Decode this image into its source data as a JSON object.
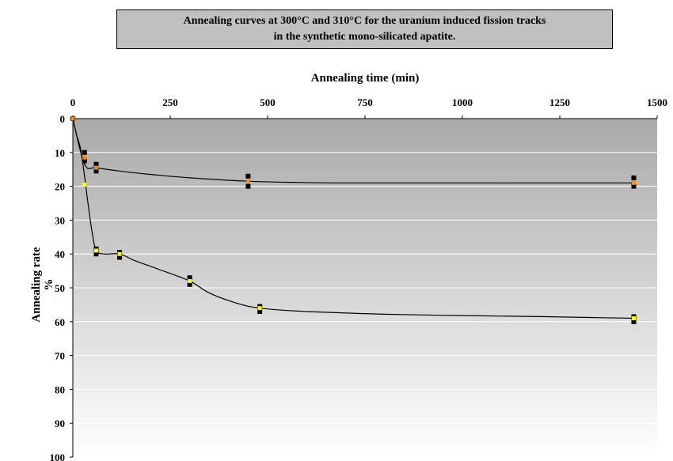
{
  "chart_data": {
    "type": "scatter",
    "title_lines": [
      "Annealing curves at 300°C and 310°C for the uranium induced fission tracks",
      "in the synthetic mono-silicated apatite."
    ],
    "xlabel": "Annealing time (min)",
    "ylabel_lines": [
      "Annealing rate",
      "%"
    ],
    "x_axis_position": "top",
    "y_axis_inverted": true,
    "xlim": [
      0,
      1500
    ],
    "ylim": [
      0,
      100
    ],
    "xticks": [
      0,
      250,
      500,
      750,
      1000,
      1250,
      1500
    ],
    "yticks": [
      0,
      10,
      20,
      30,
      40,
      50,
      60,
      70,
      80,
      90,
      100
    ],
    "grid": "horizontal",
    "background": "gradient grey-to-white",
    "series": [
      {
        "points": [
          [
            0,
            0
          ],
          [
            30,
            10
          ],
          [
            30,
            12.5
          ],
          [
            60,
            13.5
          ],
          [
            60,
            15.5
          ],
          [
            450,
            17
          ],
          [
            450,
            20
          ],
          [
            1440,
            17.5
          ],
          [
            1440,
            20
          ]
        ],
        "mean_points": [
          [
            0,
            0
          ],
          [
            30,
            11.5
          ],
          [
            60,
            14.5
          ],
          [
            450,
            18.5
          ],
          [
            1440,
            19
          ]
        ],
        "curve": [
          [
            0,
            0
          ],
          [
            30,
            13.5
          ],
          [
            60,
            14.5
          ],
          [
            120,
            15.5
          ],
          [
            200,
            16.5
          ],
          [
            300,
            17.5
          ],
          [
            450,
            18.5
          ],
          [
            550,
            18.8
          ],
          [
            700,
            19
          ],
          [
            1000,
            19
          ],
          [
            1440,
            19
          ]
        ],
        "marker_color": "#000000",
        "mean_color": "#ff8c00"
      },
      {
        "points": [
          [
            60,
            38.5
          ],
          [
            60,
            40
          ],
          [
            120,
            39.5
          ],
          [
            120,
            41
          ],
          [
            300,
            47
          ],
          [
            300,
            49
          ],
          [
            480,
            55.5
          ],
          [
            480,
            57
          ],
          [
            1440,
            58.5
          ],
          [
            1440,
            60
          ]
        ],
        "mean_points": [
          [
            30,
            19.5
          ],
          [
            60,
            39
          ],
          [
            120,
            40
          ],
          [
            300,
            48
          ],
          [
            480,
            56
          ],
          [
            1440,
            59
          ]
        ],
        "curve": [
          [
            0,
            0
          ],
          [
            10,
            5
          ],
          [
            20,
            9
          ],
          [
            30,
            17
          ],
          [
            40,
            26
          ],
          [
            50,
            34
          ],
          [
            60,
            39
          ],
          [
            80,
            40
          ],
          [
            120,
            40
          ],
          [
            160,
            42
          ],
          [
            220,
            44.5
          ],
          [
            300,
            48
          ],
          [
            350,
            51.5
          ],
          [
            420,
            54.5
          ],
          [
            480,
            56
          ],
          [
            600,
            57
          ],
          [
            800,
            57.8
          ],
          [
            1000,
            58.2
          ],
          [
            1200,
            58.5
          ],
          [
            1440,
            59
          ]
        ],
        "marker_color": "#000000",
        "mean_color": "#ffff00"
      }
    ]
  }
}
